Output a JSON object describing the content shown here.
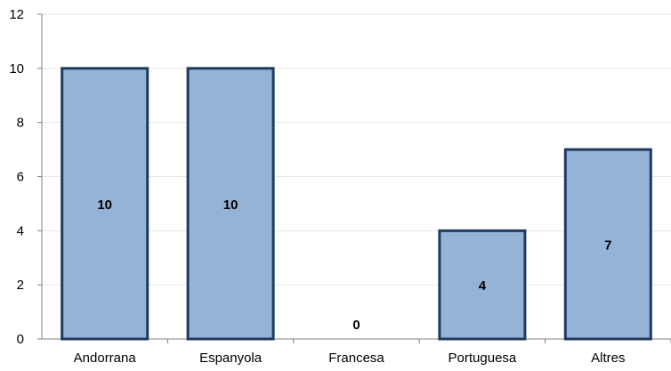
{
  "chart_data": {
    "type": "bar",
    "categories": [
      "Andorrana",
      "Espanyola",
      "Francesa",
      "Portuguesa",
      "Altres"
    ],
    "values": [
      10,
      10,
      0,
      4,
      7
    ],
    "ylim": [
      0,
      12
    ],
    "yticks": [
      0,
      2,
      4,
      6,
      8,
      10,
      12
    ],
    "grid": true,
    "data_labels": true,
    "colors": {
      "bar_fill": "#95b3d7",
      "bar_stroke": "#1f3a5f",
      "grid": "#e6e6e6",
      "axis": "#808080"
    }
  }
}
